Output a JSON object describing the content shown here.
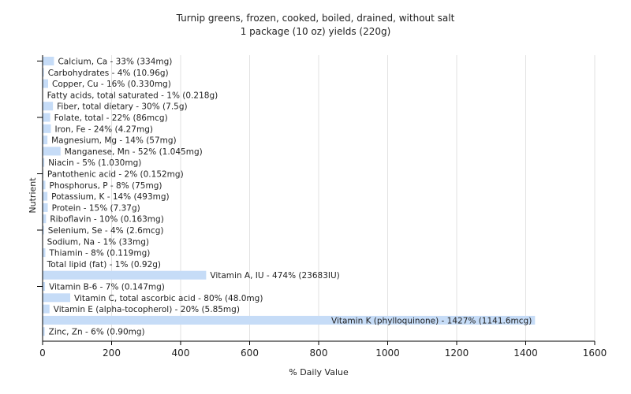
{
  "chart_data": {
    "type": "bar",
    "orientation": "horizontal",
    "title": "Turnip greens, frozen, cooked, boiled, drained, without salt",
    "subtitle": "1 package (10 oz) yields (220g)",
    "xlabel": "% Daily Value",
    "ylabel": "Nutrient",
    "xlim": [
      0,
      1600
    ],
    "xticks": [
      0,
      200,
      400,
      600,
      800,
      1000,
      1200,
      1400,
      1600
    ],
    "bar_color": "#c6dcf7",
    "grid": "vertical",
    "categories": [
      "Calcium, Ca - 33% (334mg)",
      "Carbohydrates - 4% (10.96g)",
      "Copper, Cu - 16% (0.330mg)",
      "Fatty acids, total saturated - 1% (0.218g)",
      "Fiber, total dietary - 30% (7.5g)",
      "Folate, total - 22% (86mcg)",
      "Iron, Fe - 24% (4.27mg)",
      "Magnesium, Mg - 14% (57mg)",
      "Manganese, Mn - 52% (1.045mg)",
      "Niacin - 5% (1.030mg)",
      "Pantothenic acid - 2% (0.152mg)",
      "Phosphorus, P - 8% (75mg)",
      "Potassium, K - 14% (493mg)",
      "Protein - 15% (7.37g)",
      "Riboflavin - 10% (0.163mg)",
      "Selenium, Se - 4% (2.6mcg)",
      "Sodium, Na - 1% (33mg)",
      "Thiamin - 8% (0.119mg)",
      "Total lipid (fat) - 1% (0.92g)",
      "Vitamin A, IU - 474% (23683IU)",
      "Vitamin B-6 - 7% (0.147mg)",
      "Vitamin C, total ascorbic acid - 80% (48.0mg)",
      "Vitamin E (alpha-tocopherol) - 20% (5.85mg)",
      "Vitamin K (phylloquinone) - 1427% (1141.6mcg)",
      "Zinc, Zn - 6% (0.90mg)"
    ],
    "values": [
      33,
      4,
      16,
      1,
      30,
      22,
      24,
      14,
      52,
      5,
      2,
      8,
      14,
      15,
      10,
      4,
      1,
      8,
      1,
      474,
      7,
      80,
      20,
      1427,
      6
    ]
  }
}
